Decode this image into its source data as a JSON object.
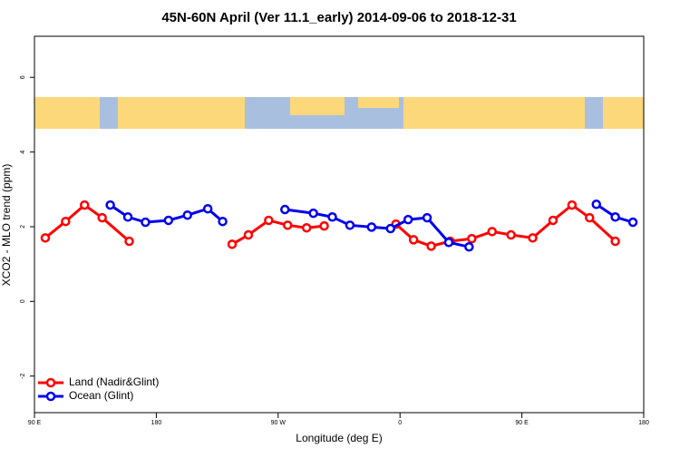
{
  "chart_data": {
    "type": "line",
    "title": "45N-60N April (Ver 11.1_early)   2014-09-06 to 2018-12-31",
    "xlabel": "Longitude (deg E)",
    "ylabel": "XCO2 - MLO trend (ppm)",
    "xlim": [
      90,
      540
    ],
    "xticks": [
      {
        "value": 90,
        "label": "90 E"
      },
      {
        "value": 180,
        "label": "180"
      },
      {
        "value": 270,
        "label": "90 W"
      },
      {
        "value": 360,
        "label": "0"
      },
      {
        "value": 450,
        "label": "90 E"
      },
      {
        "value": 540,
        "label": "180"
      }
    ],
    "ylim": [
      -2.98,
      7.1
    ],
    "yticks": [
      -2,
      0,
      2,
      4,
      6
    ],
    "legend": "bottom-left",
    "series": [
      {
        "name": "Land (Nadir&Glint)",
        "color": "#ff0000",
        "x": [
          98,
          113,
          127,
          140,
          160,
          200,
          236,
          248,
          263,
          277,
          291,
          304,
          330,
          357,
          370,
          383,
          397,
          413,
          428,
          442,
          458,
          473,
          487,
          500,
          519
        ],
        "values": [
          1.7,
          2.14,
          2.58,
          2.24,
          1.61,
          null,
          1.53,
          1.78,
          2.17,
          2.04,
          1.97,
          2.02,
          null,
          2.07,
          1.65,
          1.48,
          1.61,
          1.68,
          1.87,
          1.78,
          1.7,
          2.17,
          2.58,
          2.24,
          1.61
        ]
      },
      {
        "name": "Ocean (Glint)",
        "color": "#0000ee",
        "x": [
          146,
          159,
          172,
          189,
          203,
          218,
          229,
          250,
          275,
          296,
          310,
          323,
          339,
          353,
          366,
          380,
          396,
          411,
          460,
          505,
          519,
          532
        ],
        "values": [
          2.58,
          2.26,
          2.12,
          2.17,
          2.31,
          2.48,
          2.14,
          null,
          2.46,
          2.36,
          2.26,
          2.04,
          1.99,
          1.95,
          2.19,
          2.24,
          1.58,
          1.46,
          null,
          2.6,
          2.26,
          2.12
        ]
      }
    ]
  }
}
